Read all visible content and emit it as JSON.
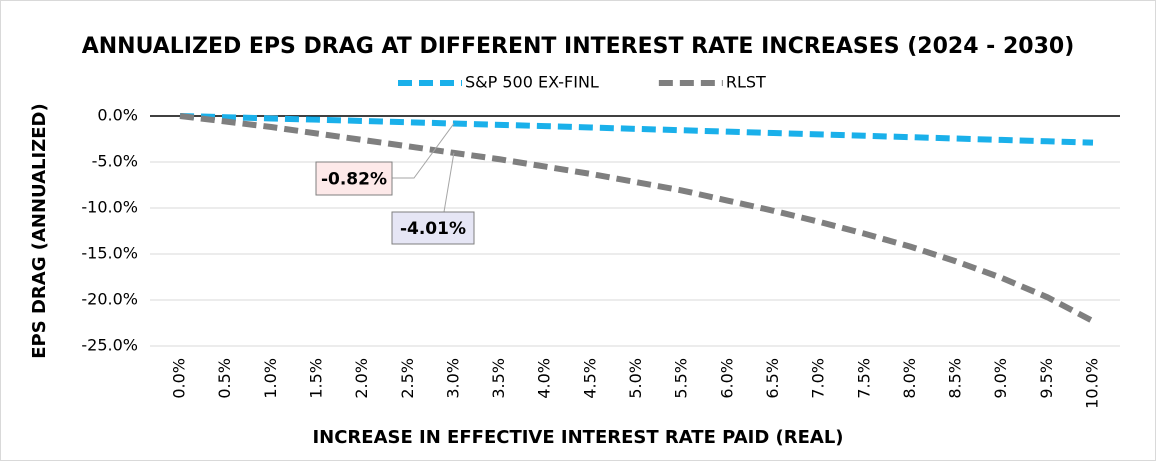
{
  "chart_data": {
    "type": "line",
    "title": "ANNUALIZED EPS DRAG AT DIFFERENT INTEREST RATE INCREASES (2024 - 2030)",
    "x_label": "INCREASE IN EFFECTIVE INTEREST RATE PAID (REAL)",
    "y_label": "EPS DRAG (ANNUALIZED)",
    "categories": [
      "0.0%",
      "0.5%",
      "1.0%",
      "1.5%",
      "2.0%",
      "2.5%",
      "3.0%",
      "3.5%",
      "4.0%",
      "4.5%",
      "5.0%",
      "5.5%",
      "6.0%",
      "6.5%",
      "7.0%",
      "7.5%",
      "8.0%",
      "8.5%",
      "9.0%",
      "9.5%",
      "10.0%"
    ],
    "series": [
      {
        "name": "S&P 500 EX-FINL",
        "color": "#1ab0ea",
        "values": [
          0,
          -0.13,
          -0.27,
          -0.4,
          -0.54,
          -0.68,
          -0.82,
          -0.96,
          -1.1,
          -1.25,
          -1.4,
          -1.55,
          -1.7,
          -1.85,
          -2.0,
          -2.15,
          -2.3,
          -2.45,
          -2.6,
          -2.75,
          -2.9
        ],
        "value_labels": [
          null,
          null,
          null,
          null,
          null,
          null,
          "-0.82%",
          null,
          null,
          null,
          null,
          null,
          null,
          null,
          null,
          null,
          null,
          null,
          null,
          null,
          null
        ]
      },
      {
        "name": "RLST",
        "color": "#7f7f7f",
        "values": [
          0,
          -0.6,
          -1.2,
          -1.9,
          -2.6,
          -3.3,
          -4.01,
          -4.7,
          -5.5,
          -6.3,
          -7.2,
          -8.1,
          -9.2,
          -10.3,
          -11.5,
          -12.8,
          -14.2,
          -15.8,
          -17.6,
          -19.7,
          -22.3
        ],
        "value_labels": [
          null,
          null,
          null,
          null,
          null,
          null,
          "-4.01%",
          null,
          null,
          null,
          null,
          null,
          null,
          null,
          null,
          null,
          null,
          null,
          null,
          null,
          null
        ]
      }
    ],
    "ylim": [
      -25,
      0
    ],
    "yticks": [
      {
        "value": 0,
        "label": "0.0%"
      },
      {
        "value": -5,
        "label": "-5.0%"
      },
      {
        "value": -10,
        "label": "-10.0%"
      },
      {
        "value": -15,
        "label": "-15.0%"
      },
      {
        "value": -20,
        "label": "-20.0%"
      },
      {
        "value": -25,
        "label": "-25.0%"
      }
    ],
    "grid": true,
    "legend": "top"
  }
}
